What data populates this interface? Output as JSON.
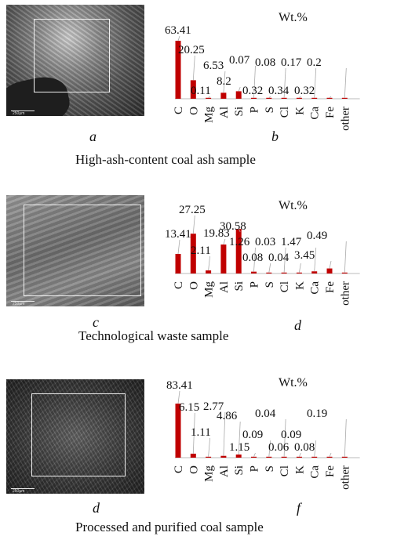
{
  "panels": [
    {
      "id": "top",
      "image_letter": "a",
      "chart_letter": "b",
      "caption": "High-ash-content coal ash sample",
      "scale_text": "250µm",
      "sem_texture": "bright-fractured",
      "chart_data": {
        "type": "bar",
        "title": "Wt.%",
        "categories": [
          "C",
          "O",
          "Mg",
          "Al",
          "Si",
          "P",
          "S",
          "Cl",
          "K",
          "Ca",
          "Fe",
          "other"
        ],
        "values": [
          63.41,
          20.25,
          0.11,
          6.53,
          8.2,
          0.07,
          0.32,
          0.08,
          0.34,
          0.17,
          0.32,
          0.2
        ],
        "value_labels": [
          "63.41",
          "20.25",
          "0.11",
          "6.53",
          "8.2",
          "0.07",
          "0.32",
          "0.08",
          "0.34",
          "0.17",
          "0.32",
          "0.2"
        ],
        "ylim": [
          0,
          63.41
        ],
        "bar_color": "#c00000",
        "grid": false,
        "xlabel": "",
        "ylabel": ""
      }
    },
    {
      "id": "middle",
      "image_letter": "c",
      "chart_letter": "d",
      "caption": "Technological waste sample",
      "scale_text": "250µm",
      "sem_texture": "grey-layered",
      "chart_data": {
        "type": "bar",
        "title": "Wt.%",
        "categories": [
          "C",
          "O",
          "Mg",
          "Al",
          "Si",
          "P",
          "S",
          "Cl",
          "K",
          "Ca",
          "Fe",
          "other"
        ],
        "values": [
          13.41,
          27.25,
          2.11,
          19.83,
          30.58,
          1.26,
          0.08,
          0.03,
          0.04,
          1.47,
          3.45,
          0.49
        ],
        "value_labels": [
          "13.41",
          "27.25",
          "2.11",
          "19.83",
          "30.58",
          "1.26",
          "0.08",
          "0.03",
          "0.04",
          "1.47",
          "3.45",
          "0.49"
        ],
        "ylim": [
          0,
          30.58
        ],
        "bar_color": "#c00000",
        "grid": false,
        "xlabel": "",
        "ylabel": ""
      }
    },
    {
      "id": "bottom",
      "image_letter": "d",
      "chart_letter": "f",
      "caption": "Processed and purified coal sample",
      "scale_text": "250µm",
      "sem_texture": "dark-granular",
      "chart_data": {
        "type": "bar",
        "title": "Wt.%",
        "categories": [
          "C",
          "O",
          "Mg",
          "Al",
          "Si",
          "P",
          "S",
          "Cl",
          "K",
          "Ca",
          "Fe",
          "other"
        ],
        "values": [
          83.41,
          6.15,
          1.11,
          2.77,
          4.86,
          1.15,
          0.09,
          0.04,
          0.06,
          0.09,
          0.08,
          0.19
        ],
        "value_labels": [
          "83.41",
          "6.15",
          "1.11",
          "2.77",
          "4.86",
          "1.15",
          "0.09",
          "0.04",
          "0.06",
          "0.09",
          "0.08",
          "0.19"
        ],
        "ylim": [
          0,
          83.41
        ],
        "bar_color": "#c00000",
        "grid": false,
        "xlabel": "",
        "ylabel": ""
      }
    }
  ]
}
